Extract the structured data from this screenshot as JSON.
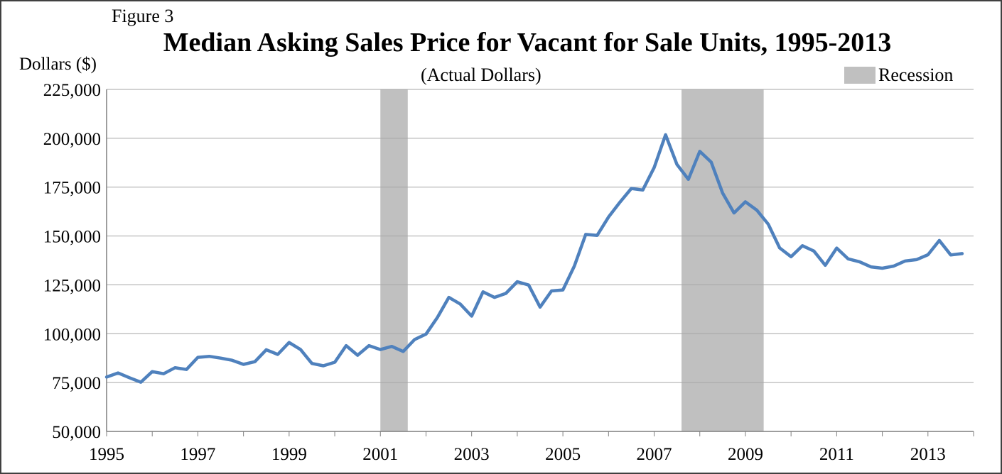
{
  "figure_label": "Figure 3",
  "chart_data": {
    "type": "line",
    "title": "Median Asking Sales Price for Vacant for Sale Units, 1995-2013",
    "subtitle": "(Actual Dollars)",
    "ylabel": "Dollars ($)",
    "xlabel": "",
    "ylim": [
      50000,
      225000
    ],
    "xlim": [
      1995,
      2014
    ],
    "yticks": [
      50000,
      75000,
      100000,
      125000,
      150000,
      175000,
      200000,
      225000
    ],
    "ytick_labels": [
      "50,000",
      "75,000",
      "100,000",
      "125,000",
      "150,000",
      "175,000",
      "200,000",
      "225,000"
    ],
    "xticks": [
      1995,
      1997,
      1999,
      2001,
      2003,
      2005,
      2007,
      2009,
      2011,
      2013
    ],
    "xtick_labels": [
      "1995",
      "1997",
      "1999",
      "2001",
      "2003",
      "2005",
      "2007",
      "2009",
      "2011",
      "2013"
    ],
    "grid": "horizontal",
    "legend": {
      "position": "top-right",
      "entries": [
        {
          "label": "Recession",
          "color": "#c0c0c0"
        }
      ]
    },
    "recessions": [
      {
        "start": 2001.0,
        "end": 2001.6
      },
      {
        "start": 2007.6,
        "end": 2009.4
      }
    ],
    "series": [
      {
        "color": "#4f81bd",
        "x": [
          1995.0,
          1995.25,
          1995.5,
          1995.75,
          1996.0,
          1996.25,
          1996.5,
          1996.75,
          1997.0,
          1997.25,
          1997.5,
          1997.75,
          1998.0,
          1998.25,
          1998.5,
          1998.75,
          1999.0,
          1999.25,
          1999.5,
          1999.75,
          2000.0,
          2000.25,
          2000.5,
          2000.75,
          2001.0,
          2001.25,
          2001.5,
          2001.75,
          2002.0,
          2002.25,
          2002.5,
          2002.75,
          2003.0,
          2003.25,
          2003.5,
          2003.75,
          2004.0,
          2004.25,
          2004.5,
          2004.75,
          2005.0,
          2005.25,
          2005.5,
          2005.75,
          2006.0,
          2006.25,
          2006.5,
          2006.75,
          2007.0,
          2007.25,
          2007.5,
          2007.75,
          2008.0,
          2008.25,
          2008.5,
          2008.75,
          2009.0,
          2009.25,
          2009.5,
          2009.75,
          2010.0,
          2010.25,
          2010.5,
          2010.75,
          2011.0,
          2011.25,
          2011.5,
          2011.75,
          2012.0,
          2012.25,
          2012.5,
          2012.75,
          2013.0,
          2013.25,
          2013.5,
          2013.75
        ],
        "values": [
          77800,
          79900,
          77500,
          75200,
          80600,
          79500,
          82600,
          81700,
          87900,
          88400,
          87500,
          86400,
          84300,
          85700,
          91800,
          89400,
          95500,
          91900,
          84800,
          83600,
          85400,
          93900,
          89000,
          93900,
          91900,
          93500,
          90900,
          97000,
          99800,
          108300,
          118600,
          115200,
          109000,
          121400,
          118600,
          120600,
          126600,
          124900,
          113600,
          121900,
          122400,
          134600,
          150800,
          150300,
          159700,
          167300,
          174300,
          173500,
          185000,
          201800,
          186600,
          179000,
          193300,
          187800,
          172000,
          161800,
          167500,
          163200,
          156000,
          143900,
          139400,
          145000,
          142300,
          135000,
          143800,
          138300,
          136800,
          134200,
          133500,
          134600,
          137200,
          137900,
          140400,
          147700,
          140300,
          141000
        ]
      }
    ]
  }
}
